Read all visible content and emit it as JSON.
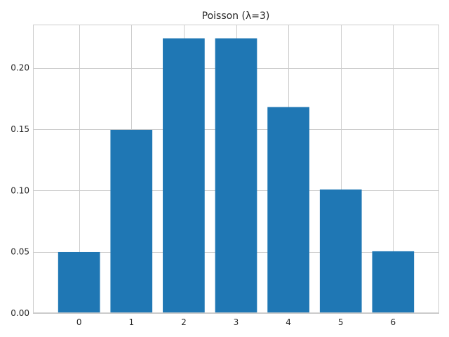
{
  "chart_data": {
    "type": "bar",
    "title": "Poisson (λ=3)",
    "xlabel": "",
    "ylabel": "",
    "categories": [
      "0",
      "1",
      "2",
      "3",
      "4",
      "5",
      "6"
    ],
    "x": [
      0,
      1,
      2,
      3,
      4,
      5,
      6
    ],
    "values": [
      0.0498,
      0.1494,
      0.224,
      0.224,
      0.168,
      0.1008,
      0.0504
    ],
    "xlim": [
      -0.88,
      6.88
    ],
    "ylim": [
      0,
      0.2352
    ],
    "yticks": [
      0.0,
      0.05,
      0.1,
      0.15,
      0.2
    ],
    "ytick_labels": [
      "0.00",
      "0.05",
      "0.10",
      "0.15",
      "0.20"
    ],
    "grid": true,
    "legend": "none",
    "colors": {
      "bar": "#1f77b4",
      "grid": "#cccccc",
      "spine": "#cccccc",
      "text": "#262626"
    }
  }
}
